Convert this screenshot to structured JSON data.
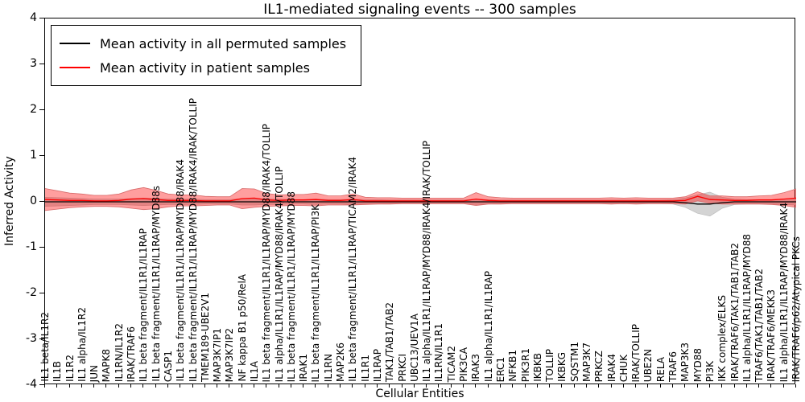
{
  "chart_data": {
    "type": "line",
    "title": "IL1-mediated signaling events -- 300 samples",
    "xlabel": "Cellular Entities",
    "ylabel": "Inferred Activity",
    "ylim": [
      -4,
      4
    ],
    "yticks": [
      4,
      3,
      2,
      1,
      0,
      -1,
      -2,
      -3,
      -4
    ],
    "grid": false,
    "legend_position": "upper left",
    "x_tick_rotation": 90,
    "categories": [
      "IL1 beta/IL1R2",
      "IL1B",
      "IL1R2",
      "IL1 alpha/IL1R2",
      "JUN",
      "MAPK8",
      "IL1RN/IL1R2",
      "IRAK/TRAF6",
      "IL1 beta fragment/IL1R1/IL1RAP",
      "IL1 beta fragment/IL1R1/IL1RAP/MYD88s",
      "CASP1",
      "IL1 beta fragment/IL1R1/IL1RAP/MYD88/IRAK4",
      "IL1 beta fragment/IL1R1/IL1RAP/MYD88/IRAK4/IRAK/TOLLIP",
      "TMEM189-UBE2V1",
      "MAP3K7IP1",
      "MAP3K7IP2",
      "NF kappa B1 p50/RelA",
      "IL1A",
      "IL1 beta fragment/IL1R1/IL1RAP/MYD88/IRAK4/TOLLIP",
      "IL1 alpha/IL1R1/IL1RAP/MYD88/IRAK4/TOLLIP",
      "IL1 beta fragment/IL1R1/IL1RAP/MYD88",
      "IRAK1",
      "IL1 beta fragment/IL1R1/IL1RAP/PI3K",
      "IL1RN",
      "MAP2K6",
      "IL1 beta fragment/IL1R1/IL1RAP/TICAM2/IRAK4",
      "IL1R1",
      "IL1RAP",
      "TAK1/TAB1/TAB2",
      "PRKCI",
      "UBC13/UEV1A",
      "IL1 alpha/IL1R1/IL1RAP/MYD88/IRAK4/IRAK/TOLLIP",
      "IL1RN/IL1R1",
      "TICAM2",
      "PIK3CA",
      "IRAK3",
      "IL1 alpha/IL1R1/IL1RAP",
      "ERC1",
      "NFKB1",
      "PIK3R1",
      "IKBKB",
      "TOLLIP",
      "IKBKG",
      "SQSTM1",
      "MAP3K7",
      "PRKCZ",
      "IRAK4",
      "CHUK",
      "IRAK/TOLLIP",
      "UBE2N",
      "RELA",
      "TRAF6",
      "MAP3K3",
      "MYD88",
      "PI3K",
      "IKK complex/ELKS",
      "IRAK/TRAF6/TAK1/TAB1/TAB2",
      "IL1 alpha/IL1R1/IL1RAP/MYD88",
      "TRAF6/TAK1/TAB1/TAB2",
      "IRAK/TRAF6/MEKK3",
      "IL1 alpha/IL1R1/IL1RAP/MYD88/IRAK4",
      "IRAK/TRAF6/p62/Atypical PKCs"
    ],
    "series": [
      {
        "name": "Mean activity in all permuted samples",
        "color": "#000000",
        "band_fill": "#cfcfcf",
        "band_edge": "#bdbdbd",
        "values": [
          0,
          0,
          0,
          0,
          0,
          0,
          0,
          0,
          0,
          0,
          0,
          0,
          0,
          0,
          0,
          0,
          0,
          0,
          0,
          0,
          0,
          0,
          0,
          0,
          0,
          0,
          0,
          0,
          0,
          0,
          0,
          0,
          0,
          0,
          0,
          0,
          0,
          0,
          0,
          0,
          0,
          0,
          0,
          0,
          0,
          0,
          0,
          0,
          0,
          0,
          0,
          0,
          -0.02,
          -0.05,
          -0.05,
          -0.02,
          0,
          0,
          0,
          0,
          0,
          0
        ],
        "band": [
          0.1,
          0.09,
          0.08,
          0.07,
          0.06,
          0.06,
          0.06,
          0.07,
          0.08,
          0.07,
          0.06,
          0.06,
          0.06,
          0.05,
          0.05,
          0.05,
          0.07,
          0.07,
          0.06,
          0.06,
          0.05,
          0.05,
          0.06,
          0.05,
          0.05,
          0.06,
          0.05,
          0.05,
          0.04,
          0.04,
          0.04,
          0.04,
          0.04,
          0.04,
          0.04,
          0.06,
          0.05,
          0.04,
          0.04,
          0.04,
          0.04,
          0.04,
          0.04,
          0.04,
          0.04,
          0.04,
          0.04,
          0.04,
          0.04,
          0.04,
          0.04,
          0.05,
          0.1,
          0.2,
          0.26,
          0.12,
          0.06,
          0.05,
          0.05,
          0.05,
          0.06,
          0.07
        ]
      },
      {
        "name": "Mean activity in patient samples",
        "color": "#ff0000",
        "band_fill": "#ff0000",
        "band_edge": "#d86a6a",
        "values": [
          0.05,
          0.04,
          0.03,
          0.03,
          0.02,
          0.02,
          0.03,
          0.06,
          0.07,
          0.05,
          0.03,
          0.03,
          0.03,
          0.02,
          0.02,
          0.02,
          0.07,
          0.08,
          0.04,
          0.03,
          0.04,
          0.04,
          0.05,
          0.03,
          0.03,
          0.05,
          0.02,
          0.02,
          0.02,
          0.02,
          0.02,
          0.02,
          0.02,
          0.02,
          0.02,
          0.06,
          0.03,
          0.02,
          0.02,
          0.02,
          0.02,
          0.02,
          0.02,
          0.02,
          0.02,
          0.02,
          0.02,
          0.02,
          0.02,
          0.02,
          0.02,
          0.02,
          0.03,
          0.12,
          0.05,
          0.04,
          0.03,
          0.03,
          0.04,
          0.04,
          0.06,
          0.08
        ],
        "band": [
          0.24,
          0.2,
          0.16,
          0.14,
          0.12,
          0.12,
          0.14,
          0.2,
          0.24,
          0.2,
          0.14,
          0.12,
          0.12,
          0.1,
          0.09,
          0.09,
          0.22,
          0.2,
          0.14,
          0.12,
          0.12,
          0.12,
          0.14,
          0.1,
          0.1,
          0.12,
          0.08,
          0.07,
          0.07,
          0.06,
          0.06,
          0.06,
          0.06,
          0.06,
          0.06,
          0.14,
          0.08,
          0.07,
          0.06,
          0.06,
          0.06,
          0.06,
          0.06,
          0.06,
          0.06,
          0.06,
          0.07,
          0.06,
          0.07,
          0.06,
          0.06,
          0.06,
          0.08,
          0.1,
          0.08,
          0.09,
          0.08,
          0.08,
          0.09,
          0.1,
          0.14,
          0.2
        ]
      }
    ]
  }
}
